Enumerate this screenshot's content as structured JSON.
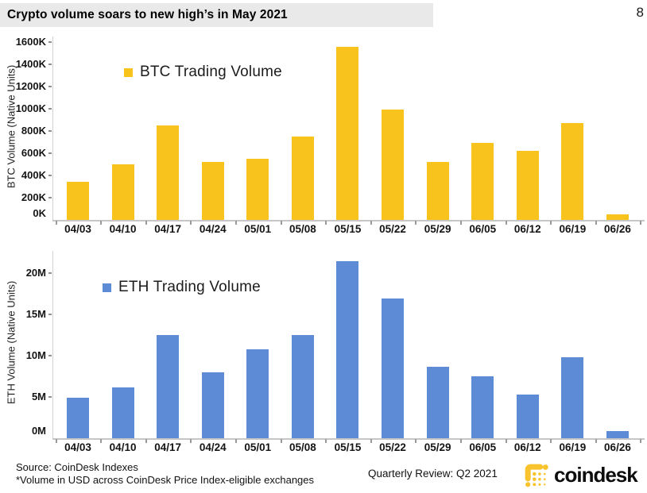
{
  "page": {
    "title": "Crypto volume soars to new high’s in May 2021",
    "page_number": "8"
  },
  "chart_data": [
    {
      "id": "btc",
      "type": "bar",
      "legend": "BTC Trading Volume",
      "ylabel": "BTC Volume (Native Units)",
      "unit": "K (thousand BTC, native units)",
      "categories": [
        "04/03",
        "04/10",
        "04/17",
        "04/24",
        "05/01",
        "05/08",
        "05/15",
        "05/22",
        "05/29",
        "06/05",
        "06/12",
        "06/19",
        "06/26"
      ],
      "values": [
        340,
        500,
        850,
        520,
        550,
        750,
        1560,
        990,
        520,
        690,
        620,
        870,
        50
      ],
      "ylim": [
        0,
        1600
      ],
      "yticks": [
        0,
        200,
        400,
        600,
        800,
        1000,
        1200,
        1400,
        1600
      ],
      "ytick_labels": [
        "0K",
        "200K",
        "400K",
        "600K",
        "800K",
        "1000K",
        "1200K",
        "1400K",
        "1600K"
      ],
      "bar_color": "#F9C31E",
      "grid": false,
      "legend_position": "inside-top-left"
    },
    {
      "id": "eth",
      "type": "bar",
      "legend": "ETH Trading Volume",
      "ylabel": "ETH Volume (Native Units)",
      "unit": "M (million ETH, native units)",
      "categories": [
        "04/03",
        "04/10",
        "04/17",
        "04/24",
        "05/01",
        "05/08",
        "05/15",
        "05/22",
        "05/29",
        "06/05",
        "06/12",
        "06/19",
        "06/26"
      ],
      "values": [
        4.9,
        6.2,
        12.5,
        8.0,
        10.8,
        12.5,
        21.4,
        16.9,
        8.7,
        7.5,
        5.3,
        9.8,
        0.9
      ],
      "ylim": [
        0,
        20
      ],
      "yticks": [
        0,
        5,
        10,
        15,
        20
      ],
      "ytick_labels": [
        "0M",
        "5M",
        "10M",
        "15M",
        "20M"
      ],
      "bar_color": "#5E8BD6",
      "grid": false,
      "legend_position": "inside-top-left"
    }
  ],
  "footer": {
    "source_line1": "Source: CoinDesk Indexes",
    "source_line2": "*Volume in USD across CoinDesk Price Index-eligible exchanges",
    "review": "Quarterly Review: Q2 2021",
    "logo_text": "coindesk",
    "logo_color": "#F8C32C"
  }
}
